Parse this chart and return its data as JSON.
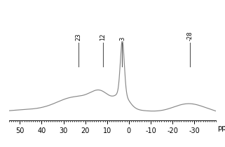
{
  "xlim": [
    55,
    -40
  ],
  "reference_lines": [
    23,
    12,
    3,
    -28
  ],
  "ref_labels": [
    "23",
    "12",
    "3",
    "-28"
  ],
  "xlabel": "ppm",
  "line_color": "#888888",
  "ref_line_color": "#555555",
  "background_color": "#ffffff",
  "tick_label_fontsize": 7,
  "xlabel_fontsize": 7,
  "ref_label_fontsize": 6.0,
  "ylim": [
    -0.02,
    0.55
  ]
}
